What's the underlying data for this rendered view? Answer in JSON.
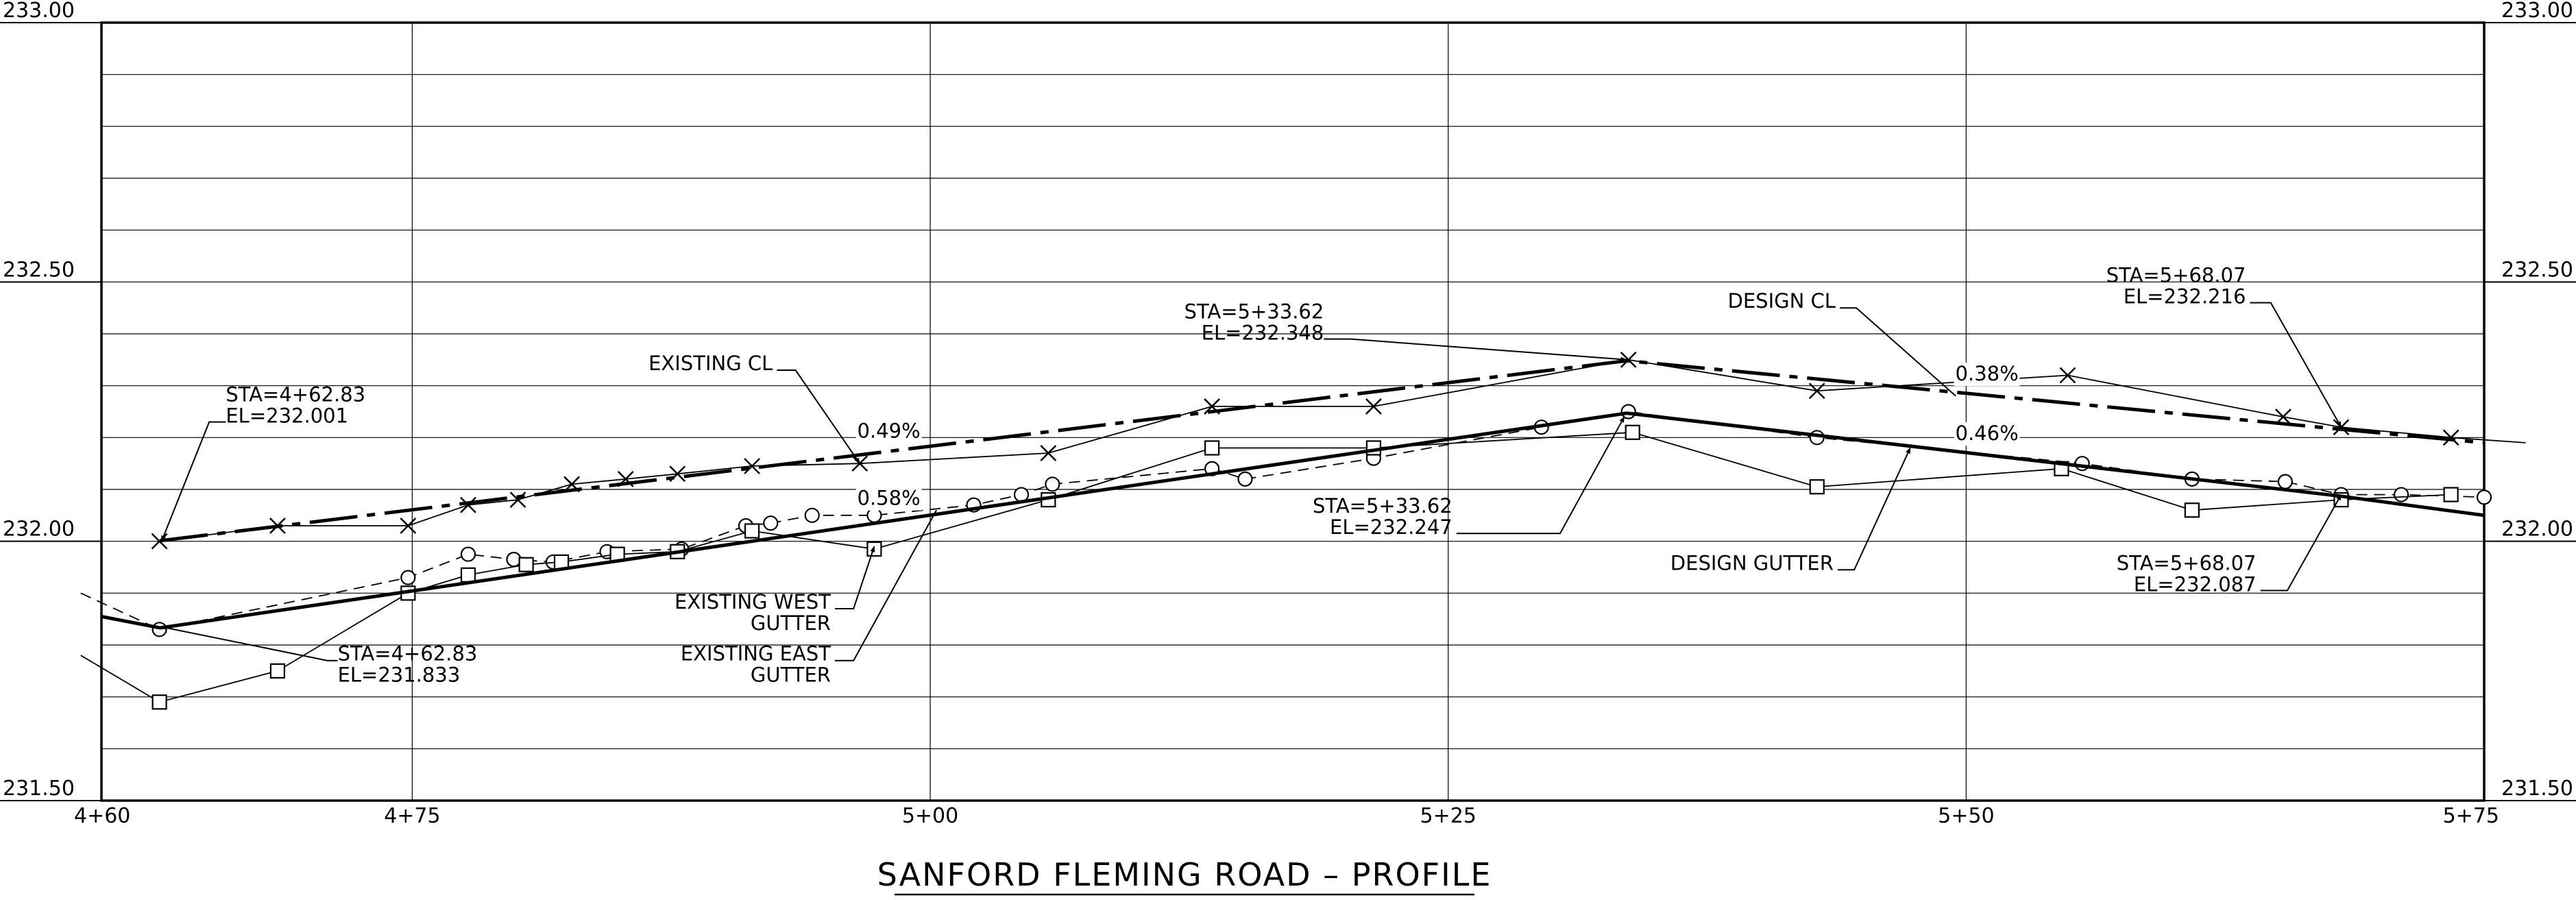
{
  "drawing_title": "SANFORD FLEMING ROAD – PROFILE",
  "chart_data": {
    "type": "line",
    "title": "SANFORD FLEMING ROAD – PROFILE",
    "xlabel": "",
    "ylabel": "",
    "xlim": [
      460,
      575
    ],
    "ylim": [
      231.5,
      233.0
    ],
    "grid": true,
    "x_ticks": [
      {
        "value": 460,
        "label": "4+60"
      },
      {
        "value": 475,
        "label": "4+75"
      },
      {
        "value": 500,
        "label": "5+00"
      },
      {
        "value": 525,
        "label": "5+25"
      },
      {
        "value": 550,
        "label": "5+50"
      },
      {
        "value": 575,
        "label": "5+75"
      }
    ],
    "y_ticks": [
      {
        "value": 231.5,
        "label": "231.50"
      },
      {
        "value": 232.0,
        "label": "232.00"
      },
      {
        "value": 232.5,
        "label": "232.50"
      },
      {
        "value": 233.0,
        "label": "233.00"
      }
    ],
    "series": [
      {
        "name": "EXISTING CL",
        "marker": "x",
        "style": "thin",
        "points": [
          [
            462.8,
            232.0
          ],
          [
            468.5,
            232.03
          ],
          [
            474.8,
            232.03
          ],
          [
            477.7,
            232.07
          ],
          [
            480.1,
            232.08
          ],
          [
            482.7,
            232.11
          ],
          [
            485.3,
            232.12
          ],
          [
            487.8,
            232.13
          ],
          [
            491.4,
            232.145
          ],
          [
            496.6,
            232.15
          ],
          [
            505.7,
            232.17
          ],
          [
            513.6,
            232.26
          ],
          [
            521.4,
            232.26
          ],
          [
            533.7,
            232.35
          ],
          [
            542.8,
            232.29
          ],
          [
            554.9,
            232.32
          ],
          [
            565.3,
            232.24
          ],
          [
            568.1,
            232.22
          ],
          [
            573.4,
            232.2
          ],
          [
            577.0,
            232.19
          ]
        ]
      },
      {
        "name": "EXISTING WEST GUTTER",
        "marker": "circle",
        "style": "dashed",
        "points": [
          [
            459.0,
            231.9
          ],
          [
            462.8,
            231.83
          ],
          [
            474.8,
            231.93
          ],
          [
            477.7,
            231.975
          ],
          [
            479.9,
            231.965
          ],
          [
            481.8,
            231.96
          ],
          [
            484.4,
            231.98
          ],
          [
            488.0,
            231.985
          ],
          [
            491.1,
            232.03
          ],
          [
            492.3,
            232.035
          ],
          [
            494.3,
            232.05
          ],
          [
            497.3,
            232.05
          ],
          [
            502.1,
            232.07
          ],
          [
            504.4,
            232.09
          ],
          [
            505.9,
            232.11
          ],
          [
            513.6,
            232.14
          ],
          [
            515.2,
            232.12
          ],
          [
            521.4,
            232.16
          ],
          [
            529.5,
            232.22
          ],
          [
            533.7,
            232.25
          ],
          [
            542.8,
            232.2
          ],
          [
            555.6,
            232.15
          ],
          [
            560.9,
            232.12
          ],
          [
            565.4,
            232.115
          ],
          [
            568.1,
            232.09
          ],
          [
            571.0,
            232.09
          ],
          [
            575.0,
            232.085
          ]
        ]
      },
      {
        "name": "EXISTING EAST GUTTER",
        "marker": "square",
        "style": "thin",
        "points": [
          [
            459.0,
            231.78
          ],
          [
            462.8,
            231.69
          ],
          [
            468.5,
            231.75
          ],
          [
            474.8,
            231.9
          ],
          [
            477.7,
            231.935
          ],
          [
            480.5,
            231.955
          ],
          [
            482.2,
            231.96
          ],
          [
            484.9,
            231.975
          ],
          [
            487.8,
            231.98
          ],
          [
            491.4,
            232.02
          ],
          [
            497.3,
            231.985
          ],
          [
            505.7,
            232.08
          ],
          [
            513.6,
            232.18
          ],
          [
            521.4,
            232.18
          ],
          [
            533.9,
            232.21
          ],
          [
            542.8,
            232.105
          ],
          [
            554.6,
            232.14
          ],
          [
            560.9,
            232.06
          ],
          [
            568.1,
            232.08
          ],
          [
            573.4,
            232.09
          ]
        ]
      },
      {
        "name": "DESIGN CL",
        "marker": "none",
        "style": "dashdot",
        "points": [
          [
            462.83,
            232.001
          ],
          [
            533.62,
            232.348
          ],
          [
            568.07,
            232.216
          ],
          [
            575.0,
            232.19
          ]
        ]
      },
      {
        "name": "DESIGN GUTTER",
        "marker": "none",
        "style": "thick",
        "points": [
          [
            460.0,
            231.855
          ],
          [
            462.83,
            231.833
          ],
          [
            533.62,
            232.247
          ],
          [
            568.07,
            232.087
          ],
          [
            575.0,
            232.05
          ]
        ]
      }
    ],
    "grade_labels": [
      {
        "text": "0.49%",
        "x": 498.0,
        "y": 232.2
      },
      {
        "text": "0.58%",
        "x": 498.0,
        "y": 232.07
      },
      {
        "text": "0.38%",
        "x": 551.0,
        "y": 232.31
      },
      {
        "text": "0.46%",
        "x": 551.0,
        "y": 232.195
      }
    ],
    "annotations": [
      {
        "lines": [
          "STA=4+62.83",
          "EL=232.001"
        ],
        "align": "start",
        "text_x": 466.0,
        "text_y": 232.27,
        "leader": [
          [
            466.0,
            232.23
          ],
          [
            465.2,
            232.23
          ],
          [
            462.9,
            232.0
          ]
        ],
        "arrow": true
      },
      {
        "lines": [
          "STA=4+62.83",
          "EL=231.833"
        ],
        "align": "start",
        "text_x": 471.4,
        "text_y": 231.77,
        "leader": [
          [
            471.4,
            231.77
          ],
          [
            470.9,
            231.77
          ],
          [
            462.9,
            231.835
          ]
        ],
        "arrow": true
      },
      {
        "lines": [
          "STA=5+33.62",
          "EL=232.348"
        ],
        "align": "end",
        "text_x": 519.0,
        "text_y": 232.43,
        "leader": [
          [
            519.0,
            232.39
          ],
          [
            520.3,
            232.39
          ],
          [
            533.6,
            232.35
          ]
        ],
        "arrow": true
      },
      {
        "lines": [
          "STA=5+33.62",
          "EL=232.247"
        ],
        "align": "end",
        "text_x": 525.2,
        "text_y": 232.055,
        "leader": [
          [
            525.4,
            232.015
          ],
          [
            530.4,
            232.015
          ],
          [
            533.5,
            232.24
          ]
        ],
        "arrow": true
      },
      {
        "lines": [
          "STA=5+68.07",
          "EL=232.216"
        ],
        "align": "end",
        "text_x": 563.5,
        "text_y": 232.5,
        "leader": [
          [
            563.7,
            232.46
          ],
          [
            564.7,
            232.46
          ],
          [
            568.1,
            232.22
          ]
        ],
        "arrow": true
      },
      {
        "lines": [
          "STA=5+68.07",
          "EL=232.087"
        ],
        "align": "end",
        "text_x": 564.0,
        "text_y": 231.945,
        "leader": [
          [
            564.2,
            231.905
          ],
          [
            565.5,
            231.905
          ],
          [
            568.1,
            232.09
          ]
        ],
        "arrow": true
      },
      {
        "lines": [
          "EXISTING CL"
        ],
        "align": "end",
        "text_x": 492.4,
        "text_y": 232.33,
        "leader": [
          [
            492.6,
            232.33
          ],
          [
            493.5,
            232.33
          ],
          [
            496.6,
            232.15
          ]
        ],
        "arrow": true
      },
      {
        "lines": [
          "DESIGN CL"
        ],
        "align": "end",
        "text_x": 543.7,
        "text_y": 232.45,
        "leader": [
          [
            543.9,
            232.45
          ],
          [
            544.7,
            232.45
          ],
          [
            549.5,
            232.28
          ]
        ],
        "arrow": false
      },
      {
        "lines": [
          "EXISTING WEST",
          "GUTTER"
        ],
        "align": "end",
        "text_x": 495.2,
        "text_y": 231.87,
        "leader": [
          [
            495.4,
            231.87
          ],
          [
            496.3,
            231.87
          ],
          [
            497.3,
            231.99
          ]
        ],
        "arrow": true
      },
      {
        "lines": [
          "EXISTING EAST",
          "GUTTER"
        ],
        "align": "end",
        "text_x": 495.2,
        "text_y": 231.77,
        "leader": [
          [
            495.4,
            231.77
          ],
          [
            496.3,
            231.77
          ],
          [
            500.3,
            232.06
          ]
        ],
        "arrow": false
      },
      {
        "lines": [
          "DESIGN GUTTER"
        ],
        "align": "end",
        "text_x": 543.6,
        "text_y": 231.945,
        "leader": [
          [
            543.8,
            231.945
          ],
          [
            544.6,
            231.945
          ],
          [
            547.3,
            232.18
          ]
        ],
        "arrow": true
      }
    ]
  }
}
